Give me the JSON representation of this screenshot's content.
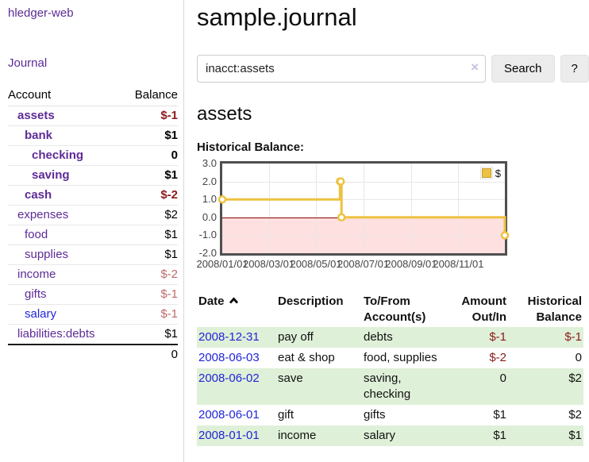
{
  "app": {
    "brand": "hledger-web"
  },
  "sidebar": {
    "journal_label": "Journal",
    "accounts": {
      "header_account": "Account",
      "header_balance": "Balance",
      "rows": [
        {
          "name": "assets",
          "depth": 1,
          "bold": true,
          "name_color": "purple",
          "balance": "$-1",
          "balance_style": "neg-strong"
        },
        {
          "name": "bank",
          "depth": 2,
          "bold": true,
          "name_color": "purple",
          "balance": "$1",
          "balance_style": "pos-strong"
        },
        {
          "name": "checking",
          "depth": 3,
          "bold": true,
          "name_color": "purple",
          "balance": "0",
          "balance_style": "pos-strong"
        },
        {
          "name": "saving",
          "depth": 3,
          "bold": true,
          "name_color": "purple",
          "balance": "$1",
          "balance_style": "pos-strong"
        },
        {
          "name": "cash",
          "depth": 2,
          "bold": true,
          "name_color": "purple",
          "balance": "$-2",
          "balance_style": "neg-strong"
        },
        {
          "name": "expenses",
          "depth": 1,
          "bold": false,
          "name_color": "purple",
          "balance": "$2",
          "balance_style": "plain"
        },
        {
          "name": "food",
          "depth": 2,
          "bold": false,
          "name_color": "purple",
          "balance": "$1",
          "balance_style": "plain"
        },
        {
          "name": "supplies",
          "depth": 2,
          "bold": false,
          "name_color": "purple",
          "balance": "$1",
          "balance_style": "plain"
        },
        {
          "name": "income",
          "depth": 1,
          "bold": false,
          "name_color": "purple",
          "balance": "$-2",
          "balance_style": "neg-muted"
        },
        {
          "name": "gifts",
          "depth": 2,
          "bold": false,
          "name_color": "purple",
          "balance": "$-1",
          "balance_style": "neg-muted"
        },
        {
          "name": "salary",
          "depth": 2,
          "bold": false,
          "name_color": "blue",
          "balance": "$-1",
          "balance_style": "neg-muted"
        },
        {
          "name": "liabilities:debts",
          "depth": 1,
          "bold": false,
          "name_color": "purple",
          "balance": "$1",
          "balance_style": "plain"
        }
      ],
      "total": "0"
    }
  },
  "main": {
    "title": "sample.journal",
    "search": {
      "value": "inacct:assets",
      "clear_icon": "×",
      "button_label": "Search",
      "help_label": "?"
    },
    "account_heading": "assets",
    "chart_label": "Historical Balance:",
    "register": {
      "headers": [
        "Date",
        "Description",
        "To/From Account(s)",
        "Amount Out/In",
        "Historical Balance"
      ],
      "rows": [
        {
          "date": "2008-12-31",
          "description": "pay off",
          "accounts": "debts",
          "amount": "$-1",
          "amount_negative": true,
          "balance": "$-1",
          "balance_negative": true
        },
        {
          "date": "2008-06-03",
          "description": "eat & shop",
          "accounts": "food, supplies",
          "amount": "$-2",
          "amount_negative": true,
          "balance": "0",
          "balance_negative": false
        },
        {
          "date": "2008-06-02",
          "description": "save",
          "accounts": "saving, checking",
          "amount": "0",
          "amount_negative": false,
          "balance": "$2",
          "balance_negative": false
        },
        {
          "date": "2008-06-01",
          "description": "gift",
          "accounts": "gifts",
          "amount": "$1",
          "amount_negative": false,
          "balance": "$2",
          "balance_negative": false
        },
        {
          "date": "2008-01-01",
          "description": "income",
          "accounts": "salary",
          "amount": "$1",
          "amount_negative": false,
          "balance": "$1",
          "balance_negative": false
        }
      ]
    }
  },
  "chart_data": {
    "type": "line",
    "style": "steps",
    "title": "Historical Balance",
    "series": [
      {
        "name": "$",
        "color": "#edc240",
        "points": [
          [
            "2008-01-01",
            1
          ],
          [
            "2008-06-01",
            2
          ],
          [
            "2008-06-02",
            2
          ],
          [
            "2008-06-03",
            0
          ],
          [
            "2008-12-31",
            -1
          ]
        ]
      }
    ],
    "x_range": [
      "2008-01-01",
      "2008-12-31"
    ],
    "xticks": [
      {
        "date": "2008-01-01",
        "label": "2008/01/01"
      },
      {
        "date": "2008-03-01",
        "label": "2008/03/01"
      },
      {
        "date": "2008-05-01",
        "label": "2008/05/01"
      },
      {
        "date": "2008-07-01",
        "label": "2008/07/01"
      },
      {
        "date": "2008-09-01",
        "label": "2008/09/01"
      },
      {
        "date": "2008-11-01",
        "label": "2008/11/01"
      }
    ],
    "yticks": [
      {
        "v": 3,
        "label": "3.0"
      },
      {
        "v": 2,
        "label": "2.0"
      },
      {
        "v": 1,
        "label": "1.0"
      },
      {
        "v": 0,
        "label": "0.0"
      },
      {
        "v": -1,
        "label": "-1.0"
      },
      {
        "v": -2,
        "label": "-2.0"
      }
    ],
    "ylim": [
      -2,
      3
    ],
    "grid": true,
    "legend_position": "top-right",
    "negative_fill": "rgba(255,0,0,0.12)",
    "zero_line_color": "#8b0000"
  }
}
